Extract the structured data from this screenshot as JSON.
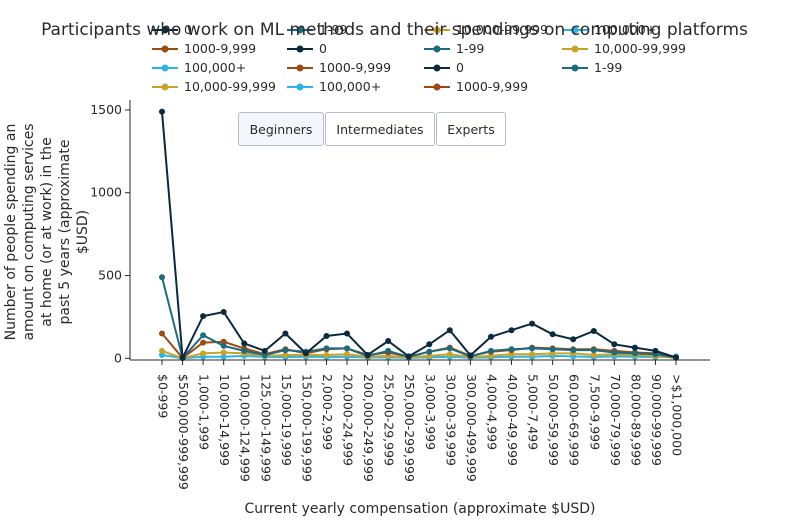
{
  "chart_data": {
    "type": "line",
    "title": "Participants who work on ML methods and their spendings on computing platforms",
    "xlabel": "Current yearly compensation (approximate $USD)",
    "ylabel": "Number of people spending an amount on computing services at home (or at work) in the past 5 years (approximate $USD)",
    "ylim": [
      -10,
      1560
    ],
    "yticks": [
      0,
      500,
      1000,
      1500
    ],
    "grid": false,
    "legend_position": "top",
    "categories": [
      "$0-999",
      "$500,000-999,999",
      "1,000-1,999",
      "10,000-14,999",
      "100,000-124,999",
      "125,000-149,999",
      "15,000-19,999",
      "150,000-199,999",
      "2,000-2,999",
      "20,000-24,999",
      "200,000-249,999",
      "25,000-29,999",
      "250,000-299,999",
      "3,000-3,999",
      "30,000-39,999",
      "300,000-499,999",
      "4,000-4,999",
      "40,000-49,999",
      "5,000-7,499",
      "50,000-59,999",
      "60,000-69,999",
      "7,500-9,999",
      "70,000-79,999",
      "80,000-89,999",
      "90,000-99,999",
      ">$1,000,000"
    ],
    "series": [
      {
        "name": "0",
        "color": "#0b2a3d",
        "values": [
          1490,
          3,
          255,
          280,
          90,
          45,
          150,
          30,
          135,
          150,
          20,
          105,
          12,
          85,
          170,
          18,
          130,
          170,
          210,
          145,
          115,
          165,
          85,
          65,
          45,
          5
        ]
      },
      {
        "name": "1-99",
        "color": "#1e6b80",
        "values": [
          490,
          2,
          140,
          75,
          45,
          20,
          50,
          40,
          60,
          60,
          15,
          45,
          8,
          40,
          60,
          12,
          45,
          55,
          60,
          55,
          50,
          50,
          35,
          30,
          25,
          5
        ]
      },
      {
        "name": "1000-9,999",
        "color": "#9c4a12",
        "values": [
          150,
          2,
          95,
          100,
          60,
          25,
          55,
          30,
          55,
          60,
          20,
          35,
          10,
          40,
          65,
          15,
          40,
          50,
          65,
          60,
          55,
          55,
          45,
          35,
          30,
          5
        ]
      },
      {
        "name": "10,000-99,999",
        "color": "#c9a227",
        "values": [
          45,
          1,
          30,
          35,
          30,
          15,
          20,
          20,
          20,
          25,
          10,
          15,
          5,
          15,
          25,
          8,
          15,
          25,
          25,
          30,
          30,
          20,
          25,
          20,
          15,
          2
        ]
      },
      {
        "name": "100,000+",
        "color": "#29b5e8",
        "values": [
          20,
          1,
          10,
          10,
          15,
          8,
          8,
          10,
          8,
          10,
          5,
          6,
          3,
          6,
          10,
          4,
          6,
          10,
          10,
          15,
          12,
          8,
          12,
          10,
          8,
          12
        ]
      }
    ],
    "legend_entries": [
      {
        "label": "0",
        "series": 0
      },
      {
        "label": "1-99",
        "series": 1
      },
      {
        "label": "10,000-99,999",
        "series": 3
      },
      {
        "label": "100,000+",
        "series": 4
      },
      {
        "label": "1000-9,999",
        "series": 2
      },
      {
        "label": "0",
        "series": 0
      },
      {
        "label": "1-99",
        "series": 1
      },
      {
        "label": "10,000-99,999",
        "series": 3
      },
      {
        "label": "100,000+",
        "series": 4
      },
      {
        "label": "1000-9,999",
        "series": 2
      },
      {
        "label": "0",
        "series": 0
      },
      {
        "label": "1-99",
        "series": 1
      },
      {
        "label": "10,000-99,999",
        "series": 3
      },
      {
        "label": "100,000+",
        "series": 4
      },
      {
        "label": "1000-9,999",
        "series": 2
      }
    ]
  },
  "buttons": {
    "beginners": "Beginners",
    "intermediates": "Intermediates",
    "experts": "Experts"
  }
}
